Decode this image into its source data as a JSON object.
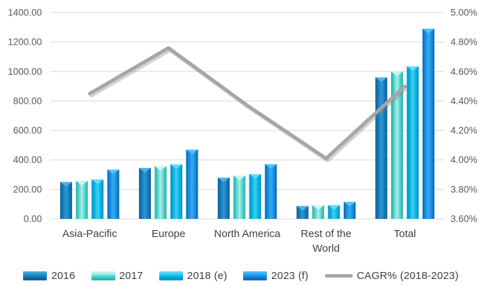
{
  "figure": {
    "background": "#FFFFFF",
    "tick_text_color": "#595959",
    "category_text_color": "#404040",
    "gridline_color": "#D9D9D9"
  },
  "chart_data": {
    "type": "bar",
    "title": "",
    "xlabel": "",
    "ylabel": "",
    "categories": [
      "Asia-Pacific",
      "Europe",
      "North America",
      "Rest of the World",
      "Total"
    ],
    "category_label_lines": [
      [
        "Asia-Pacific"
      ],
      [
        "Europe"
      ],
      [
        "North America"
      ],
      [
        "Rest of the",
        "World"
      ],
      [
        "Total"
      ]
    ],
    "series": [
      {
        "name": "2016",
        "values": [
          250,
          345,
          280,
          87,
          960
        ],
        "colors": {
          "edge": "#0B5E9B",
          "base": "#1173B6",
          "light": "#2F98D0",
          "cap": "#54B5E0"
        }
      },
      {
        "name": "2017",
        "values": [
          258,
          357,
          293,
          92,
          1000
        ],
        "colors": {
          "edge": "#25AFAC",
          "base": "#41CAC4",
          "light": "#A9EFE8",
          "cap": "#CFF7F1"
        }
      },
      {
        "name": "2018 (e)",
        "values": [
          267,
          370,
          304,
          93,
          1035
        ],
        "colors": {
          "edge": "#0090C2",
          "base": "#00ACDE",
          "light": "#3FCEF2",
          "cap": "#6ADDF8"
        }
      },
      {
        "name": "2023 (f)",
        "values": [
          334,
          470,
          371,
          115,
          1290
        ],
        "colors": {
          "edge": "#0A63AC",
          "base": "#0F86DB",
          "light": "#35ABF2",
          "cap": "#58C3F8"
        }
      }
    ],
    "line_series": {
      "name": "CAGR% (2018-2023)",
      "axis": "right",
      "values": [
        4.45,
        4.76,
        4.37,
        4.01,
        4.5
      ],
      "color": "#A6A6A6",
      "shadow_color": "rgba(128,128,128,0.35)"
    },
    "left_axis": {
      "min": 0,
      "max": 1400,
      "step": 200,
      "ticks": [
        "1400.00",
        "1200.00",
        "1000.00",
        "800.00",
        "600.00",
        "400.00",
        "200.00",
        "0.00"
      ]
    },
    "right_axis": {
      "min": 3.6,
      "max": 5.0,
      "step": 0.2,
      "ticks": [
        "5.00%",
        "4.80%",
        "4.60%",
        "4.40%",
        "4.20%",
        "4.00%",
        "3.80%",
        "3.60%"
      ]
    },
    "grid": true,
    "legend_position": "bottom"
  }
}
